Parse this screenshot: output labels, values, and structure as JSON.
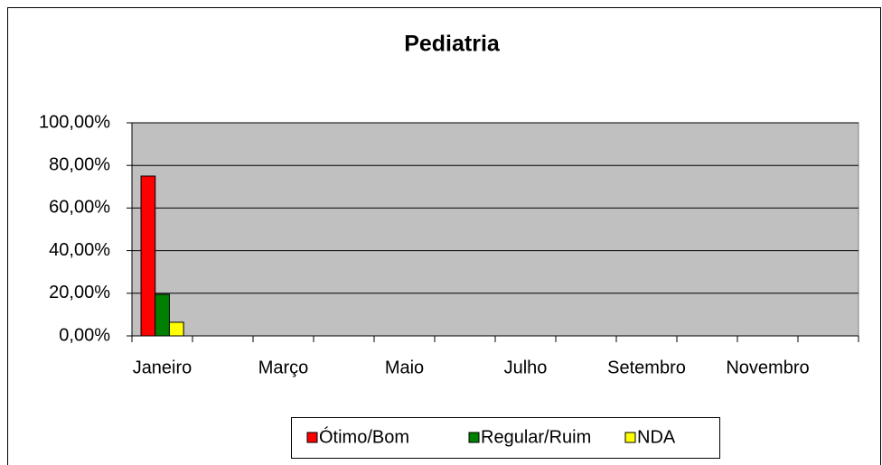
{
  "chart_data": {
    "type": "bar",
    "title": "Pediatria",
    "categories": [
      "Janeiro",
      null,
      "Março",
      null,
      "Maio",
      null,
      "Julho",
      null,
      "Setembro",
      null,
      "Novembro",
      null
    ],
    "series": [
      {
        "name": "Ótimo/Bom",
        "color": "#ff0000",
        "values": [
          75,
          null,
          null,
          null,
          null,
          null,
          null,
          null,
          null,
          null,
          null,
          null
        ]
      },
      {
        "name": "Regular/Ruim",
        "color": "#008000",
        "values": [
          19.5,
          null,
          null,
          null,
          null,
          null,
          null,
          null,
          null,
          null,
          null,
          null
        ]
      },
      {
        "name": "NDA",
        "color": "#ffff00",
        "values": [
          6.4,
          null,
          null,
          null,
          null,
          null,
          null,
          null,
          null,
          null,
          null,
          null
        ]
      }
    ],
    "ylim": [
      0,
      100
    ],
    "yticks": [
      {
        "value": 0,
        "label": "0,00%"
      },
      {
        "value": 20,
        "label": "20,00%"
      },
      {
        "value": 40,
        "label": "40,00%"
      },
      {
        "value": 60,
        "label": "60,00%"
      },
      {
        "value": 80,
        "label": "80,00%"
      },
      {
        "value": 100,
        "label": "100,00%"
      }
    ],
    "grid": true,
    "plot_background": "#c0c0c0",
    "legend": "bottom"
  }
}
